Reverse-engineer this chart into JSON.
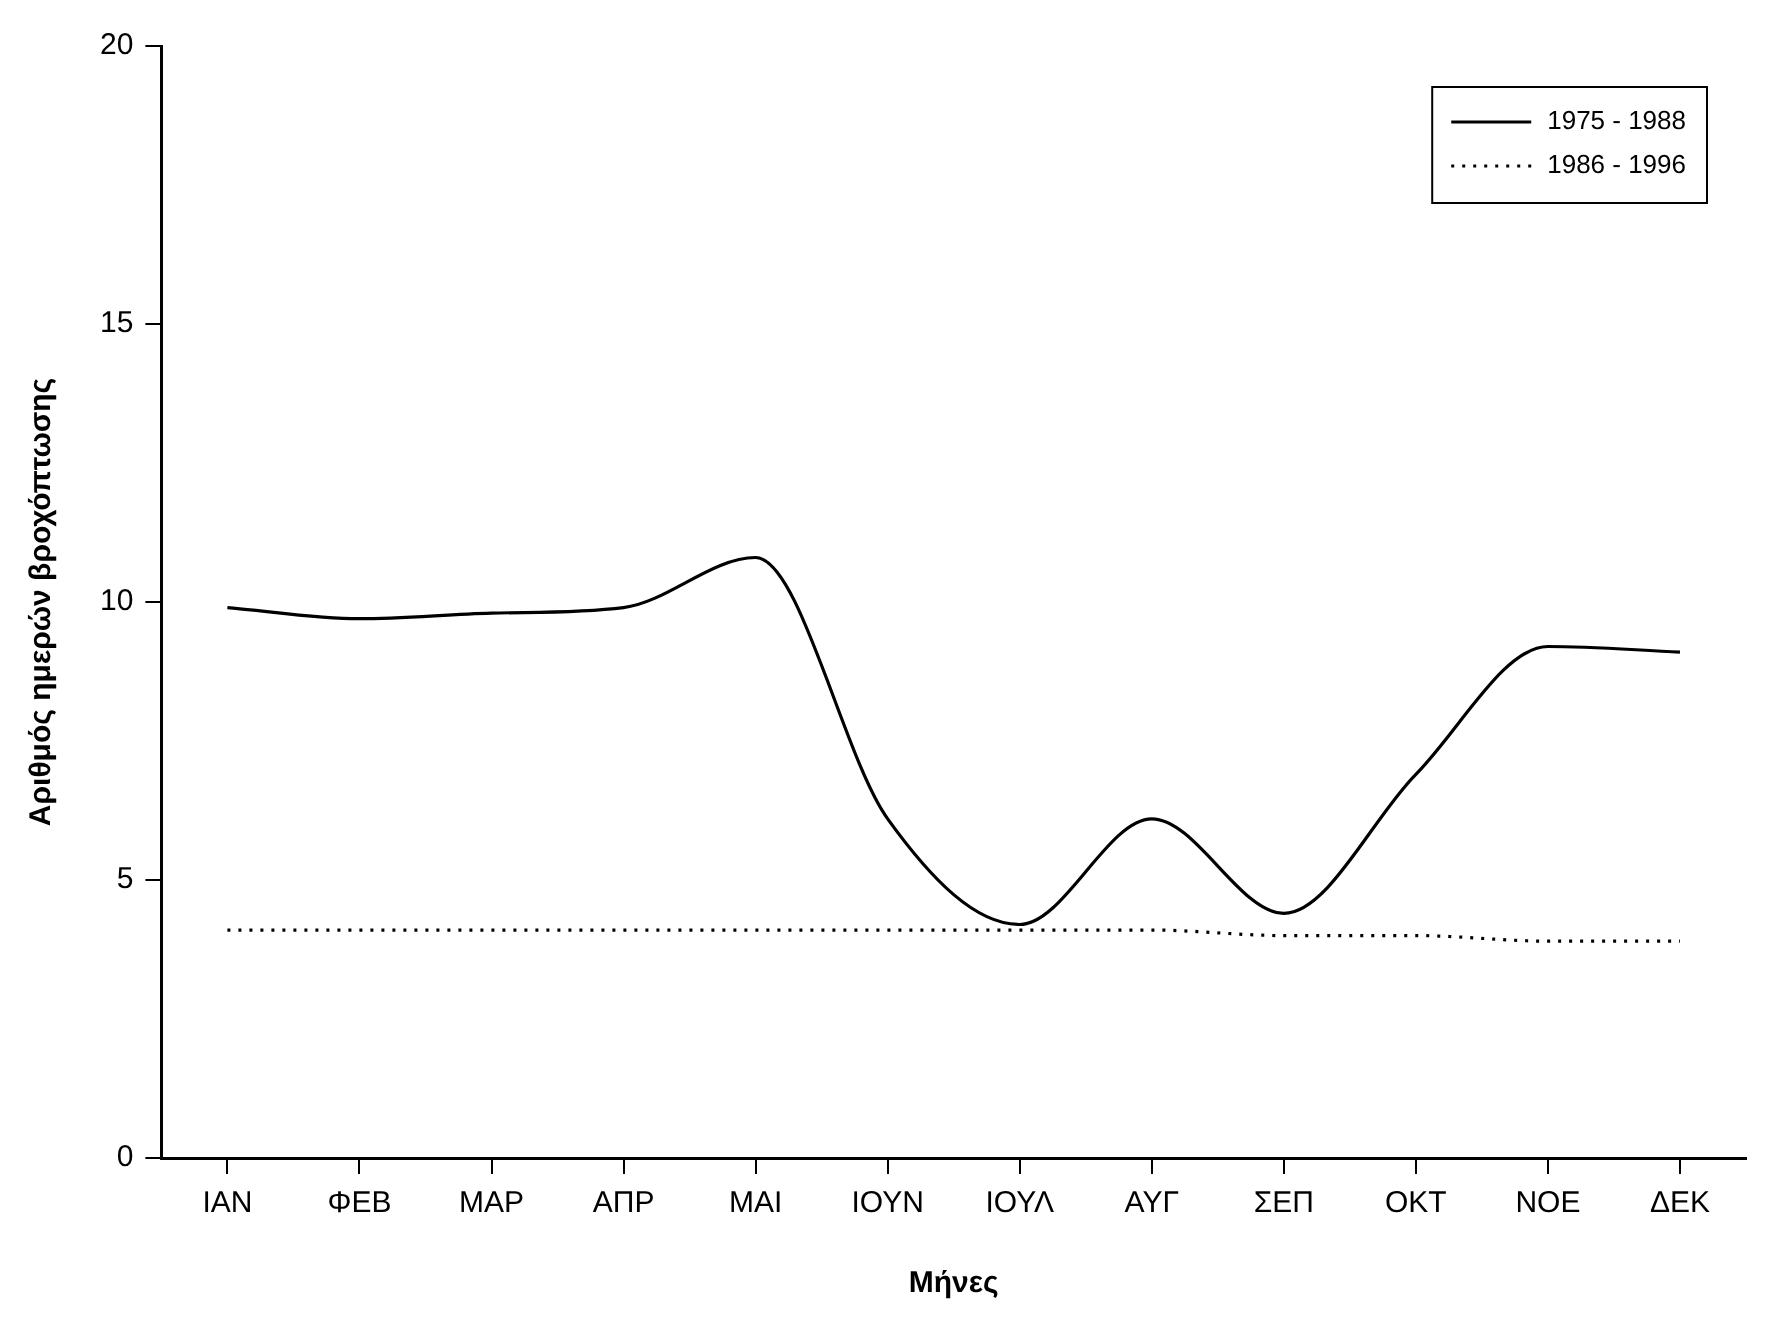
{
  "chart_data": {
    "type": "line",
    "xlabel": "Μήνες",
    "ylabel": "Αριθμός ημερών βροχόπτωσης",
    "categories": [
      "ΙΑΝ",
      "ΦΕΒ",
      "ΜΑΡ",
      "ΑΠΡ",
      "ΜΑΙ",
      "ΙΟΥΝ",
      "ΙΟΥΛ",
      "ΑΥΓ",
      "ΣΕΠ",
      "ΟΚΤ",
      "ΝΟΕ",
      "ΔΕΚ"
    ],
    "series": [
      {
        "name": "1975 - 1988",
        "color": "#000000",
        "line_style": "solid",
        "values": [
          9.9,
          9.7,
          9.8,
          9.9,
          10.8,
          6.1,
          4.2,
          6.1,
          4.4,
          6.9,
          9.2,
          9.1
        ]
      },
      {
        "name": "1986 - 1996",
        "color": "#000000",
        "line_style": "dotted",
        "values": [
          4.1,
          4.1,
          4.1,
          4.1,
          4.1,
          4.1,
          4.1,
          4.1,
          4.0,
          4.0,
          3.9,
          3.9
        ]
      }
    ],
    "ylim": [
      0,
      20
    ],
    "yticks": [
      0,
      5,
      10,
      15,
      20
    ],
    "grid": false,
    "legend": "top right",
    "marker": "none"
  }
}
